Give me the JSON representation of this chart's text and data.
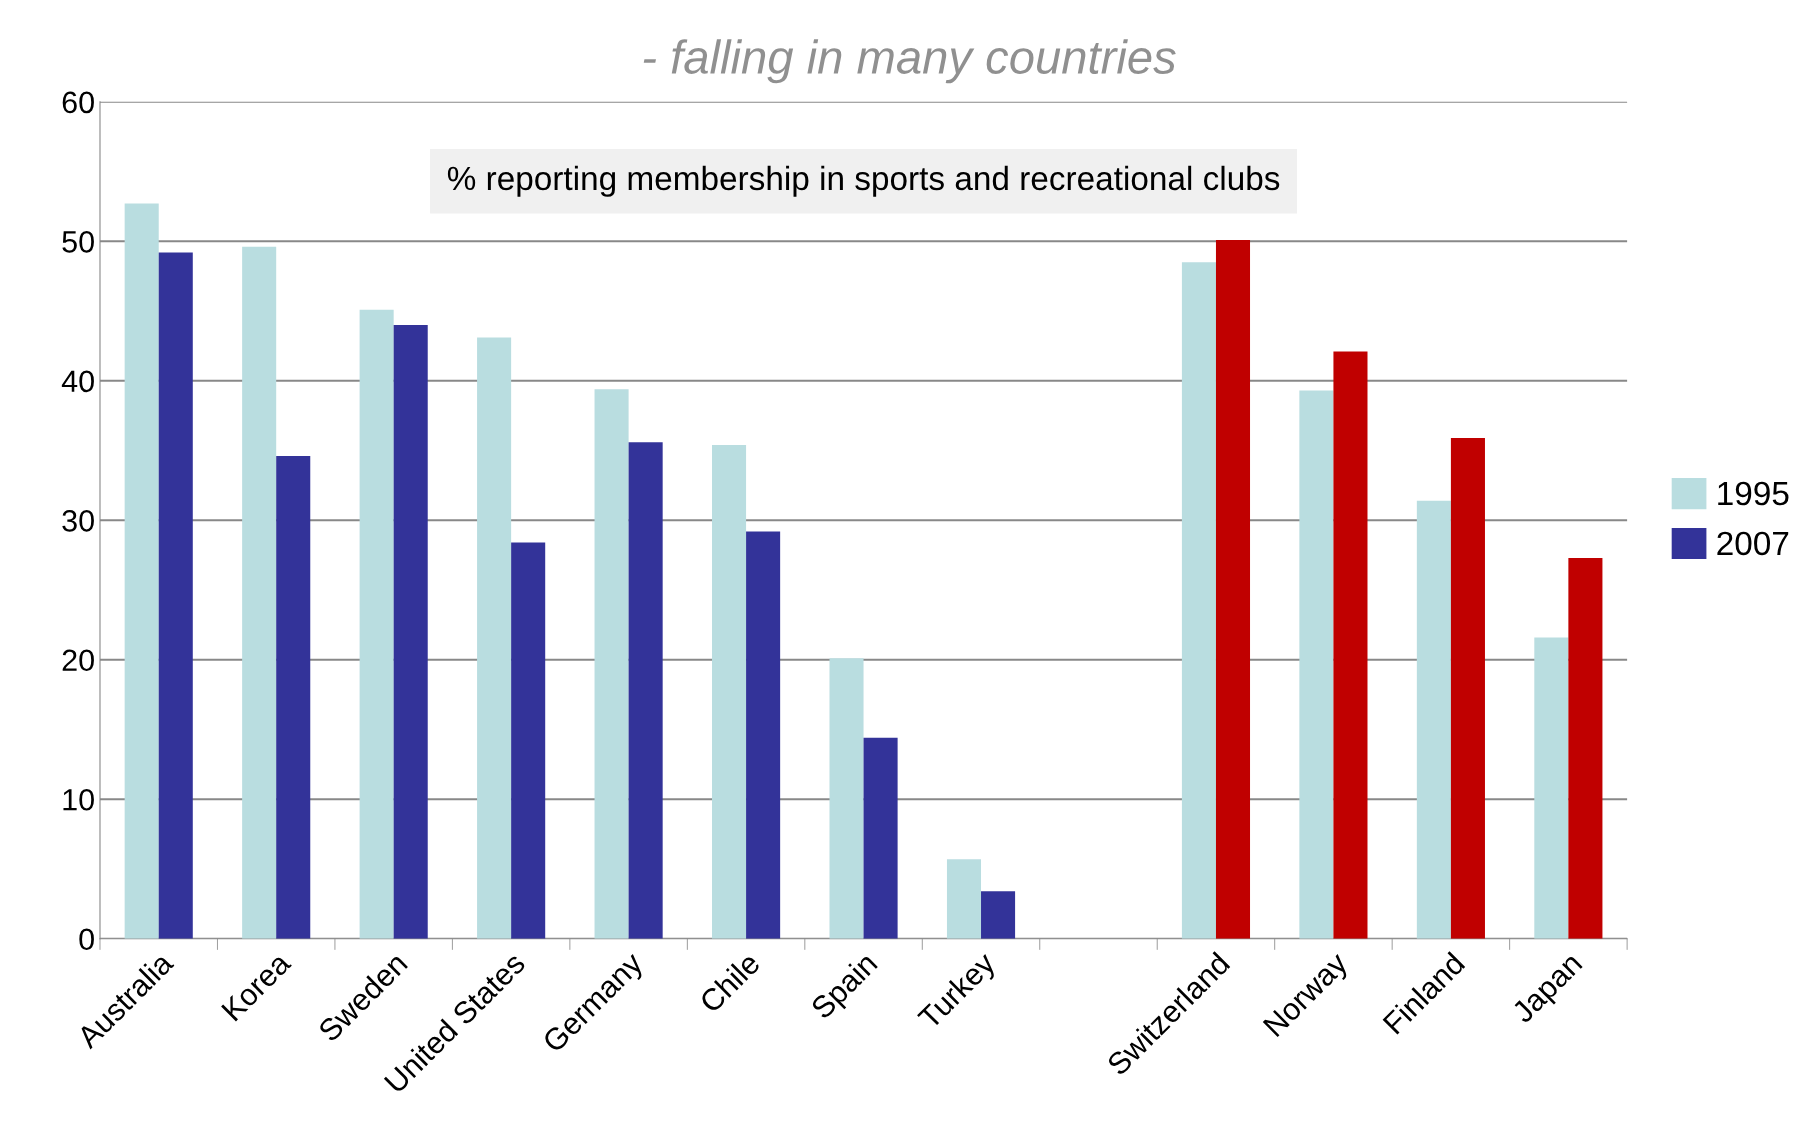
{
  "chart_data": {
    "type": "bar",
    "title": "- falling in many countries",
    "annotations": [
      "% reporting membership in sports and recreational clubs"
    ],
    "categories": [
      "Australia",
      "Korea",
      "Sweden",
      "United States",
      "Germany",
      "Chile",
      "Spain",
      "Turkey",
      null,
      "Switzerland",
      "Norway",
      "Finland",
      "Japan"
    ],
    "series": [
      {
        "name": "1995",
        "color": "#b9dde0",
        "values": [
          52.7,
          49.6,
          45.1,
          43.1,
          39.4,
          35.4,
          20.1,
          5.7,
          null,
          48.5,
          39.3,
          31.4,
          21.6
        ]
      },
      {
        "name": "2007",
        "color": "#333399",
        "colors": [
          "#333399",
          "#333399",
          "#333399",
          "#333399",
          "#333399",
          "#333399",
          "#333399",
          "#333399",
          "#333399",
          "#c00000",
          "#c00000",
          "#c00000",
          "#c00000"
        ],
        "values": [
          49.2,
          34.6,
          44.0,
          28.4,
          35.6,
          29.2,
          14.4,
          3.4,
          null,
          50.1,
          42.1,
          35.9,
          27.3
        ]
      }
    ],
    "ylim": [
      0,
      60
    ],
    "yticks": [
      0,
      10,
      20,
      30,
      40,
      50,
      60
    ],
    "grid": "y",
    "legend": "right"
  }
}
